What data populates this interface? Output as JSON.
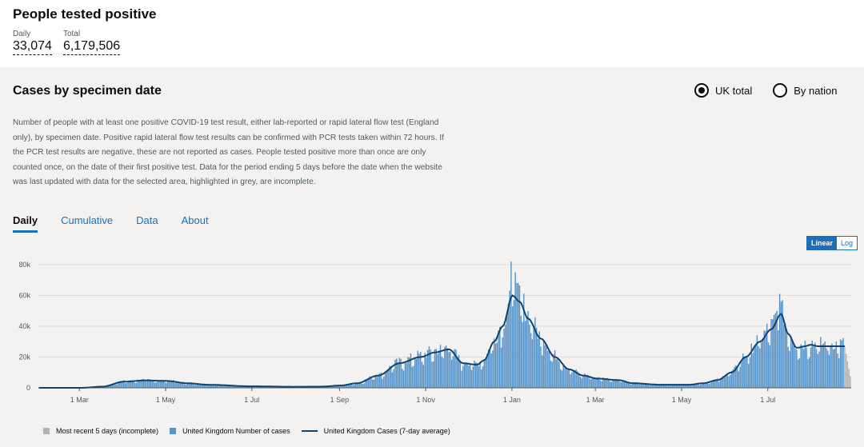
{
  "header": {
    "title": "People tested positive",
    "daily_label": "Daily",
    "daily_value": "33,074",
    "total_label": "Total",
    "total_value": "6,179,506"
  },
  "card": {
    "title": "Cases by specimen date",
    "radio_uk": "UK total",
    "radio_nation": "By nation",
    "description": "Number of people with at least one positive COVID-19 test result, either lab-reported or rapid lateral flow test (England only), by specimen date. Positive rapid lateral flow test results can be confirmed with PCR tests taken within 72 hours. If the PCR test results are negative, these are not reported as cases. People tested positive more than once are only counted once, on the date of their first positive test. Data for the period ending 5 days before the date when the website was last updated with data for the selected area, highlighted in grey, are incomplete.",
    "tabs": [
      "Daily",
      "Cumulative",
      "Data",
      "About"
    ],
    "scale_linear": "Linear",
    "scale_log": "Log"
  },
  "legend": {
    "incomplete": "Most recent 5 days (incomplete)",
    "cases": "United Kingdom Number of cases",
    "average": "United Kingdom Cases (7-day average)"
  },
  "colors": {
    "bar": "#5694ca",
    "bar_incomplete": "#b1b4b6",
    "line": "#12436d",
    "accent": "#1d70b8"
  },
  "chart_data": {
    "type": "bar",
    "title": "Cases by specimen date",
    "ylim": [
      0,
      80000
    ],
    "y_ticks": [
      0,
      20000,
      40000,
      60000,
      80000
    ],
    "y_tick_labels": [
      "0",
      "20k",
      "40k",
      "60k",
      "80k"
    ],
    "x_tick_labels": [
      "1 Mar",
      "1 May",
      "1 Jul",
      "1 Sep",
      "1 Nov",
      "1 Jan",
      "1 Mar",
      "1 May",
      "1 Jul"
    ],
    "x_tick_days": [
      29,
      90,
      151,
      213,
      274,
      335,
      394,
      455,
      516
    ],
    "total_days": 575,
    "incomplete_days": 5,
    "series": [
      {
        "name": "United Kingdom Cases (7-day average)",
        "anchors": [
          [
            0,
            0
          ],
          [
            30,
            0
          ],
          [
            45,
            800
          ],
          [
            60,
            4000
          ],
          [
            75,
            4800
          ],
          [
            90,
            4500
          ],
          [
            105,
            3000
          ],
          [
            120,
            2000
          ],
          [
            150,
            1000
          ],
          [
            180,
            700
          ],
          [
            200,
            800
          ],
          [
            213,
            1500
          ],
          [
            225,
            3000
          ],
          [
            240,
            8000
          ],
          [
            255,
            16000
          ],
          [
            270,
            20000
          ],
          [
            280,
            23000
          ],
          [
            290,
            25000
          ],
          [
            300,
            16000
          ],
          [
            310,
            15000
          ],
          [
            315,
            18000
          ],
          [
            322,
            30000
          ],
          [
            328,
            40000
          ],
          [
            335,
            60000
          ],
          [
            340,
            56000
          ],
          [
            346,
            45000
          ],
          [
            355,
            32000
          ],
          [
            365,
            20000
          ],
          [
            375,
            12000
          ],
          [
            385,
            8000
          ],
          [
            395,
            6000
          ],
          [
            410,
            5000
          ],
          [
            420,
            3000
          ],
          [
            440,
            2000
          ],
          [
            460,
            2000
          ],
          [
            470,
            3000
          ],
          [
            480,
            5000
          ],
          [
            490,
            10000
          ],
          [
            500,
            20000
          ],
          [
            510,
            30000
          ],
          [
            518,
            38000
          ],
          [
            525,
            48000
          ],
          [
            530,
            35000
          ],
          [
            536,
            26000
          ],
          [
            542,
            27000
          ],
          [
            546,
            28000
          ],
          [
            551,
            27000
          ]
        ]
      }
    ],
    "peaks": [
      [
        334,
        82000
      ],
      [
        337,
        75000
      ],
      [
        339,
        68000
      ],
      [
        524,
        61000
      ],
      [
        526,
        57000
      ]
    ]
  }
}
